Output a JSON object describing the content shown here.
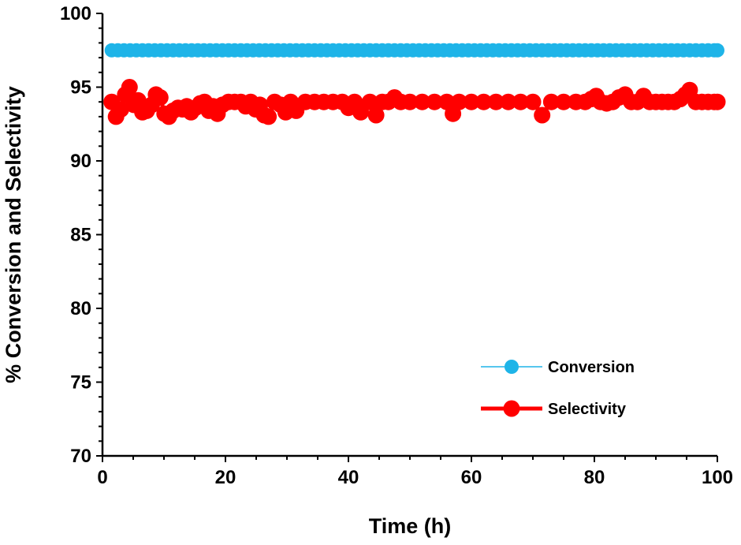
{
  "chart_data": {
    "type": "scatter",
    "xlabel": "Time (h)",
    "ylabel": "% Conversion and Selectivity",
    "xlim": [
      0,
      100
    ],
    "ylim": [
      70,
      100
    ],
    "xticks": [
      0,
      20,
      40,
      60,
      80,
      100
    ],
    "yticks": [
      70,
      75,
      80,
      85,
      90,
      95,
      100
    ],
    "grid": false,
    "legend_position": "bottom-right",
    "series": [
      {
        "name": "Conversion",
        "color": "#1EB4E8",
        "marker": "circle",
        "line": "thin",
        "x": [
          1.5,
          2.5,
          3.5,
          4.5,
          5.5,
          6.5,
          7.5,
          8.5,
          9.5,
          10.5,
          11.5,
          12.5,
          13.5,
          14.5,
          15.5,
          16.5,
          17.5,
          18.5,
          19.5,
          20.5,
          21.5,
          22.5,
          23.5,
          24.5,
          25.5,
          26.5,
          27.5,
          28.5,
          29.5,
          30.5,
          31.5,
          32.5,
          33.5,
          34.5,
          35.5,
          36.5,
          37.5,
          38.5,
          39.5,
          40.5,
          41.5,
          42.5,
          43.5,
          44.5,
          45.5,
          46.5,
          47.5,
          48.5,
          49.5,
          50.5,
          51.5,
          52.5,
          53.5,
          54.5,
          55.5,
          56.5,
          57.5,
          58.5,
          59.5,
          60.5,
          61.5,
          62.5,
          63.5,
          64.5,
          65.5,
          66.5,
          67.5,
          68.5,
          69.5,
          70.5,
          71.5,
          72.5,
          73.5,
          74.5,
          75.5,
          76.5,
          77.5,
          78.5,
          79.5,
          80.5,
          81.5,
          82.5,
          83.5,
          84.5,
          85.5,
          86.5,
          87.5,
          88.5,
          89.5,
          90.5,
          91.5,
          92.5,
          93.5,
          94.5,
          95.5,
          96.5,
          97.5,
          98.5,
          99.5,
          100
        ],
        "y": [
          97.5,
          97.5,
          97.5,
          97.5,
          97.5,
          97.5,
          97.5,
          97.5,
          97.5,
          97.5,
          97.5,
          97.5,
          97.5,
          97.5,
          97.5,
          97.5,
          97.5,
          97.5,
          97.5,
          97.5,
          97.5,
          97.5,
          97.5,
          97.5,
          97.5,
          97.5,
          97.5,
          97.5,
          97.5,
          97.5,
          97.5,
          97.5,
          97.5,
          97.5,
          97.5,
          97.5,
          97.5,
          97.5,
          97.5,
          97.5,
          97.5,
          97.5,
          97.5,
          97.5,
          97.5,
          97.5,
          97.5,
          97.5,
          97.5,
          97.5,
          97.5,
          97.5,
          97.5,
          97.5,
          97.5,
          97.5,
          97.5,
          97.5,
          97.5,
          97.5,
          97.5,
          97.5,
          97.5,
          97.5,
          97.5,
          97.5,
          97.5,
          97.5,
          97.5,
          97.5,
          97.5,
          97.5,
          97.5,
          97.5,
          97.5,
          97.5,
          97.5,
          97.5,
          97.5,
          97.5,
          97.5,
          97.5,
          97.5,
          97.5,
          97.5,
          97.5,
          97.5,
          97.5,
          97.5,
          97.5,
          97.5,
          97.5,
          97.5,
          97.5,
          97.5,
          97.5,
          97.5,
          97.5,
          97.5,
          97.5
        ]
      },
      {
        "name": "Selectivity",
        "color": "#FF0000",
        "marker": "circle",
        "line": "thick",
        "x": [
          1.5,
          2.2,
          3.0,
          3.7,
          4.4,
          5.1,
          5.8,
          6.5,
          7.2,
          8.0,
          8.7,
          9.4,
          10.1,
          10.8,
          11.5,
          12.3,
          13.0,
          13.7,
          14.4,
          15.1,
          15.9,
          16.6,
          17.3,
          18.0,
          18.7,
          19.5,
          20.5,
          21.5,
          22.5,
          23.3,
          24.1,
          24.9,
          25.6,
          26.3,
          27.0,
          28.0,
          29.0,
          29.8,
          30.6,
          31.5,
          33.0,
          34.5,
          36.0,
          37.5,
          39.0,
          40.0,
          41.0,
          42.0,
          43.5,
          44.5,
          45.5,
          46.5,
          47.5,
          48.5,
          50.0,
          52.0,
          54.0,
          56.0,
          57.0,
          58.0,
          60.0,
          62.0,
          64.0,
          66.0,
          68.0,
          70.0,
          71.5,
          73.0,
          75.0,
          77.0,
          78.5,
          79.5,
          80.3,
          81.0,
          82.0,
          83.0,
          84.0,
          85.0,
          86.0,
          87.0,
          88.0,
          89.0,
          90.0,
          91.0,
          92.0,
          93.0,
          94.0,
          94.8,
          95.5,
          96.5,
          97.5,
          98.5,
          99.5,
          100.0
        ],
        "y": [
          94.0,
          93.0,
          93.5,
          94.5,
          95.0,
          93.8,
          94.1,
          93.3,
          93.4,
          93.8,
          94.5,
          94.3,
          93.2,
          93.0,
          93.4,
          93.6,
          93.5,
          93.7,
          93.3,
          93.6,
          93.9,
          94.0,
          93.4,
          93.7,
          93.2,
          93.8,
          94.0,
          94.0,
          94.0,
          93.7,
          94.0,
          93.5,
          93.8,
          93.1,
          93.0,
          94.0,
          93.8,
          93.3,
          94.0,
          93.4,
          94.0,
          94.0,
          94.0,
          94.0,
          94.0,
          93.6,
          94.0,
          93.3,
          94.0,
          93.1,
          94.0,
          94.0,
          94.3,
          94.0,
          94.0,
          94.0,
          94.0,
          94.0,
          93.2,
          94.0,
          94.0,
          94.0,
          94.0,
          94.0,
          94.0,
          94.0,
          93.1,
          94.0,
          94.0,
          94.0,
          94.0,
          94.2,
          94.4,
          94.0,
          93.9,
          94.0,
          94.3,
          94.5,
          94.0,
          94.0,
          94.4,
          94.0,
          94.0,
          94.0,
          94.0,
          94.0,
          94.2,
          94.5,
          94.8,
          94.0,
          94.0,
          94.0,
          94.0,
          94.0
        ]
      }
    ]
  }
}
